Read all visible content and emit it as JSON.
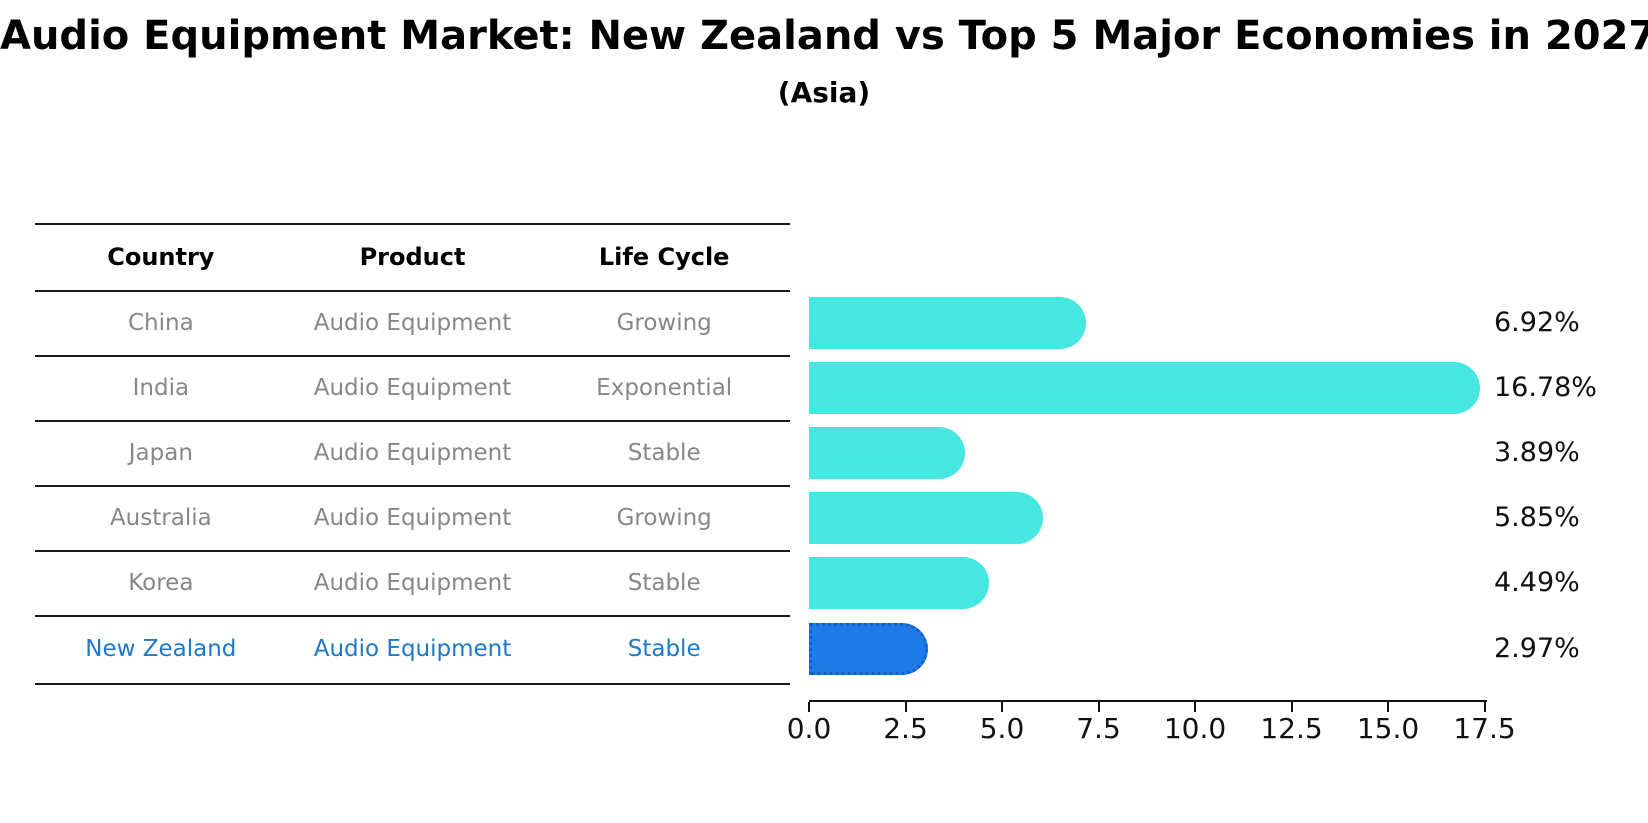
{
  "title": "Audio Equipment Market: New Zealand vs Top 5 Major Economies in 2027",
  "subtitle": "(Asia)",
  "table": {
    "headers": [
      "Country",
      "Product",
      "Life Cycle"
    ],
    "rows": [
      {
        "country": "China",
        "product": "Audio Equipment",
        "life_cycle": "Growing",
        "highlight": false
      },
      {
        "country": "India",
        "product": "Audio Equipment",
        "life_cycle": "Exponential",
        "highlight": false
      },
      {
        "country": "Japan",
        "product": "Audio Equipment",
        "life_cycle": "Stable",
        "highlight": false
      },
      {
        "country": "Australia",
        "product": "Audio Equipment",
        "life_cycle": "Growing",
        "highlight": false
      },
      {
        "country": "Korea",
        "product": "Audio Equipment",
        "life_cycle": "Stable",
        "highlight": false
      },
      {
        "country": "New Zealand",
        "product": "Audio Equipment",
        "life_cycle": "Stable",
        "highlight": true
      }
    ]
  },
  "chart_data": {
    "type": "bar",
    "orientation": "horizontal",
    "title": "Audio Equipment Market: New Zealand vs Top 5 Major Economies in 2027",
    "subtitle": "(Asia)",
    "categories": [
      "China",
      "India",
      "Japan",
      "Australia",
      "Korea",
      "New Zealand"
    ],
    "values": [
      6.92,
      16.78,
      3.89,
      5.85,
      4.49,
      2.97
    ],
    "value_labels": [
      "6.92%",
      "16.78%",
      "3.89%",
      "5.85%",
      "4.49%",
      "2.97%"
    ],
    "xlabel": "",
    "ylabel": "",
    "xlim": [
      0,
      17.5
    ],
    "xticks": [
      0.0,
      2.5,
      5.0,
      7.5,
      10.0,
      12.5,
      15.0,
      17.5
    ],
    "xtick_labels": [
      "0.0",
      "2.5",
      "5.0",
      "7.5",
      "10.0",
      "12.5",
      "15.0",
      "17.5"
    ],
    "grid": false,
    "legend": false,
    "highlight_category": "New Zealand"
  },
  "colors": {
    "bar": "#47E7E1",
    "highlight_bar": "#1F7BE8",
    "highlight_bar_border": "#0F5FD0",
    "highlight_text": "#1F78C8",
    "cell_text": "#878787",
    "header_text": "#000000",
    "line": "#1a1a1a"
  }
}
